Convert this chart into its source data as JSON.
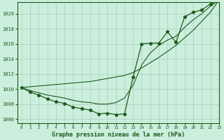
{
  "title": "Graphe pression niveau de la mer (hPa)",
  "bg_color": "#cceedd",
  "line_color": "#1a5c1a",
  "grid_color": "#aaccbb",
  "xlim": [
    -0.5,
    23
  ],
  "ylim": [
    1005.5,
    1021.5
  ],
  "yticks": [
    1006,
    1008,
    1010,
    1012,
    1014,
    1016,
    1018,
    1020
  ],
  "xticks": [
    0,
    1,
    2,
    3,
    4,
    5,
    6,
    7,
    8,
    9,
    10,
    11,
    12,
    13,
    14,
    15,
    16,
    17,
    18,
    19,
    20,
    21,
    22,
    23
  ],
  "hours": [
    0,
    1,
    2,
    3,
    4,
    5,
    6,
    7,
    8,
    9,
    10,
    11,
    12,
    13,
    14,
    15,
    16,
    17,
    18,
    19,
    20,
    21,
    22,
    23
  ],
  "pressure_main": [
    1010.2,
    1009.6,
    1009.2,
    1008.7,
    1008.3,
    1008.1,
    1007.6,
    1007.4,
    1007.2,
    1006.7,
    1006.8,
    1006.6,
    1006.7,
    1011.6,
    1016.0,
    1016.1,
    1016.1,
    1017.6,
    1016.2,
    1019.6,
    1020.2,
    1020.5,
    1021.3,
    1021.8
  ],
  "pressure_linear": [
    1010.2,
    1010.3,
    1010.4,
    1010.5,
    1010.6,
    1010.7,
    1010.8,
    1010.9,
    1011.0,
    1011.2,
    1011.4,
    1011.6,
    1011.8,
    1012.2,
    1012.8,
    1013.5,
    1014.2,
    1015.0,
    1015.8,
    1016.8,
    1017.8,
    1019.0,
    1020.2,
    1021.8
  ],
  "pressure_smooth": [
    1010.2,
    1009.8,
    1009.5,
    1009.2,
    1009.0,
    1008.8,
    1008.5,
    1008.3,
    1008.2,
    1008.0,
    1008.0,
    1008.2,
    1008.8,
    1010.5,
    1013.2,
    1014.8,
    1015.8,
    1016.5,
    1017.0,
    1018.2,
    1019.2,
    1020.0,
    1021.0,
    1021.8
  ]
}
